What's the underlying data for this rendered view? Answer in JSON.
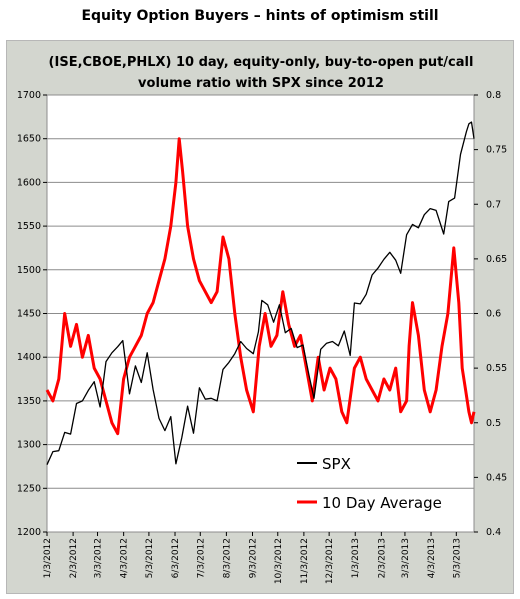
{
  "page": {
    "title": "Equity Option Buyers – hints of optimism  still"
  },
  "chart_data": {
    "type": "line",
    "title": "(ISE,CBOE,PHLX) 10 day, equity-only, buy-to-open put/call volume ratio with SPX since 2012",
    "title_lines": [
      "(ISE,CBOE,PHLX) 10 day, equity-only, buy-to-open put/call",
      "volume ratio with SPX since 2012"
    ],
    "x_tick_labels": [
      "1/3/2012",
      "2/3/2012",
      "3/3/2012",
      "4/3/2012",
      "5/3/2012",
      "6/3/2012",
      "7/3/2012",
      "8/3/2012",
      "9/3/2012",
      "10/3/2012",
      "11/3/2012",
      "12/3/2012",
      "1/3/2013",
      "2/3/2013",
      "3/3/2013",
      "4/3/2013",
      "5/3/2013"
    ],
    "xlim": [
      "2012-01-03",
      "2013-05-24"
    ],
    "y_left": {
      "lim": [
        1200,
        1700
      ],
      "ticks": [
        1200,
        1250,
        1300,
        1350,
        1400,
        1450,
        1500,
        1550,
        1600,
        1650,
        1700
      ]
    },
    "y_right": {
      "lim": [
        0.4,
        0.8
      ],
      "ticks": [
        0.4,
        0.45,
        0.5,
        0.55,
        0.6,
        0.65,
        0.7,
        0.75,
        0.8
      ]
    },
    "grid": {
      "horizontal": true,
      "vertical": false
    },
    "legend_position": "lower-right",
    "colors": {
      "spx": "#000000",
      "avg": "#ff0000",
      "frame_bg": "#d3d6cf",
      "plot_bg": "#ffffff",
      "grid": "#8c8c8c"
    },
    "series": [
      {
        "name": "SPX",
        "axis": "left",
        "points": [
          [
            "2012-01-03",
            1277
          ],
          [
            "2012-01-10",
            1292
          ],
          [
            "2012-01-17",
            1293
          ],
          [
            "2012-01-24",
            1314
          ],
          [
            "2012-01-31",
            1312
          ],
          [
            "2012-02-07",
            1347
          ],
          [
            "2012-02-14",
            1350
          ],
          [
            "2012-02-21",
            1362
          ],
          [
            "2012-02-28",
            1372
          ],
          [
            "2012-03-06",
            1343
          ],
          [
            "2012-03-13",
            1395
          ],
          [
            "2012-03-20",
            1405
          ],
          [
            "2012-03-27",
            1412
          ],
          [
            "2012-04-02",
            1419
          ],
          [
            "2012-04-10",
            1358
          ],
          [
            "2012-04-17",
            1390
          ],
          [
            "2012-04-24",
            1371
          ],
          [
            "2012-05-01",
            1405
          ],
          [
            "2012-05-08",
            1363
          ],
          [
            "2012-05-15",
            1330
          ],
          [
            "2012-05-22",
            1316
          ],
          [
            "2012-05-29",
            1332
          ],
          [
            "2012-06-04",
            1278
          ],
          [
            "2012-06-11",
            1308
          ],
          [
            "2012-06-18",
            1344
          ],
          [
            "2012-06-25",
            1313
          ],
          [
            "2012-07-02",
            1365
          ],
          [
            "2012-07-09",
            1352
          ],
          [
            "2012-07-16",
            1353
          ],
          [
            "2012-07-23",
            1350
          ],
          [
            "2012-07-30",
            1386
          ],
          [
            "2012-08-06",
            1394
          ],
          [
            "2012-08-13",
            1404
          ],
          [
            "2012-08-20",
            1418
          ],
          [
            "2012-08-27",
            1410
          ],
          [
            "2012-09-04",
            1404
          ],
          [
            "2012-09-10",
            1429
          ],
          [
            "2012-09-14",
            1465
          ],
          [
            "2012-09-21",
            1460
          ],
          [
            "2012-09-28",
            1440
          ],
          [
            "2012-10-05",
            1460
          ],
          [
            "2012-10-12",
            1428
          ],
          [
            "2012-10-19",
            1433
          ],
          [
            "2012-10-26",
            1411
          ],
          [
            "2012-11-02",
            1414
          ],
          [
            "2012-11-09",
            1380
          ],
          [
            "2012-11-15",
            1353
          ],
          [
            "2012-11-23",
            1409
          ],
          [
            "2012-11-30",
            1416
          ],
          [
            "2012-12-07",
            1418
          ],
          [
            "2012-12-14",
            1413
          ],
          [
            "2012-12-21",
            1430
          ],
          [
            "2012-12-28",
            1402
          ],
          [
            "2013-01-02",
            1462
          ],
          [
            "2013-01-09",
            1461
          ],
          [
            "2013-01-16",
            1472
          ],
          [
            "2013-01-23",
            1494
          ],
          [
            "2013-01-30",
            1502
          ],
          [
            "2013-02-06",
            1512
          ],
          [
            "2013-02-13",
            1520
          ],
          [
            "2013-02-20",
            1511
          ],
          [
            "2013-02-26",
            1496
          ],
          [
            "2013-03-05",
            1540
          ],
          [
            "2013-03-12",
            1552
          ],
          [
            "2013-03-19",
            1548
          ],
          [
            "2013-03-26",
            1563
          ],
          [
            "2013-04-02",
            1570
          ],
          [
            "2013-04-09",
            1568
          ],
          [
            "2013-04-18",
            1541
          ],
          [
            "2013-04-24",
            1578
          ],
          [
            "2013-05-01",
            1582
          ],
          [
            "2013-05-08",
            1632
          ],
          [
            "2013-05-15",
            1658
          ],
          [
            "2013-05-18",
            1667
          ],
          [
            "2013-05-21",
            1669
          ],
          [
            "2013-05-24",
            1650
          ]
        ]
      },
      {
        "name": "10 Day Average",
        "axis": "right",
        "points": [
          [
            "2012-01-03",
            0.53
          ],
          [
            "2012-01-10",
            0.52
          ],
          [
            "2012-01-17",
            0.54
          ],
          [
            "2012-01-24",
            0.6
          ],
          [
            "2012-01-31",
            0.57
          ],
          [
            "2012-02-07",
            0.59
          ],
          [
            "2012-02-14",
            0.56
          ],
          [
            "2012-02-21",
            0.58
          ],
          [
            "2012-02-28",
            0.55
          ],
          [
            "2012-03-06",
            0.54
          ],
          [
            "2012-03-13",
            0.52
          ],
          [
            "2012-03-20",
            0.5
          ],
          [
            "2012-03-27",
            0.49
          ],
          [
            "2012-04-03",
            0.54
          ],
          [
            "2012-04-10",
            0.56
          ],
          [
            "2012-04-17",
            0.57
          ],
          [
            "2012-04-24",
            0.58
          ],
          [
            "2012-05-01",
            0.6
          ],
          [
            "2012-05-08",
            0.61
          ],
          [
            "2012-05-15",
            0.63
          ],
          [
            "2012-05-22",
            0.65
          ],
          [
            "2012-05-29",
            0.68
          ],
          [
            "2012-06-04",
            0.72
          ],
          [
            "2012-06-08",
            0.76
          ],
          [
            "2012-06-12",
            0.73
          ],
          [
            "2012-06-18",
            0.68
          ],
          [
            "2012-06-25",
            0.65
          ],
          [
            "2012-07-02",
            0.63
          ],
          [
            "2012-07-09",
            0.62
          ],
          [
            "2012-07-16",
            0.61
          ],
          [
            "2012-07-23",
            0.62
          ],
          [
            "2012-07-30",
            0.67
          ],
          [
            "2012-08-06",
            0.65
          ],
          [
            "2012-08-13",
            0.6
          ],
          [
            "2012-08-20",
            0.56
          ],
          [
            "2012-08-27",
            0.53
          ],
          [
            "2012-09-04",
            0.51
          ],
          [
            "2012-09-11",
            0.57
          ],
          [
            "2012-09-18",
            0.6
          ],
          [
            "2012-09-25",
            0.57
          ],
          [
            "2012-10-02",
            0.58
          ],
          [
            "2012-10-09",
            0.62
          ],
          [
            "2012-10-16",
            0.59
          ],
          [
            "2012-10-23",
            0.57
          ],
          [
            "2012-10-30",
            0.58
          ],
          [
            "2012-11-06",
            0.55
          ],
          [
            "2012-11-13",
            0.52
          ],
          [
            "2012-11-20",
            0.56
          ],
          [
            "2012-11-27",
            0.53
          ],
          [
            "2012-12-04",
            0.55
          ],
          [
            "2012-12-11",
            0.54
          ],
          [
            "2012-12-18",
            0.51
          ],
          [
            "2012-12-24",
            0.5
          ],
          [
            "2013-01-02",
            0.55
          ],
          [
            "2013-01-09",
            0.56
          ],
          [
            "2013-01-16",
            0.54
          ],
          [
            "2013-01-23",
            0.53
          ],
          [
            "2013-01-30",
            0.52
          ],
          [
            "2013-02-06",
            0.54
          ],
          [
            "2013-02-13",
            0.53
          ],
          [
            "2013-02-20",
            0.55
          ],
          [
            "2013-02-26",
            0.51
          ],
          [
            "2013-03-05",
            0.52
          ],
          [
            "2013-03-08",
            0.57
          ],
          [
            "2013-03-12",
            0.61
          ],
          [
            "2013-03-19",
            0.58
          ],
          [
            "2013-03-26",
            0.53
          ],
          [
            "2013-04-02",
            0.51
          ],
          [
            "2013-04-09",
            0.53
          ],
          [
            "2013-04-16",
            0.57
          ],
          [
            "2013-04-23",
            0.6
          ],
          [
            "2013-04-30",
            0.66
          ],
          [
            "2013-05-06",
            0.61
          ],
          [
            "2013-05-10",
            0.55
          ],
          [
            "2013-05-14",
            0.53
          ],
          [
            "2013-05-18",
            0.51
          ],
          [
            "2013-05-21",
            0.5
          ],
          [
            "2013-05-24",
            0.51
          ]
        ]
      }
    ]
  }
}
